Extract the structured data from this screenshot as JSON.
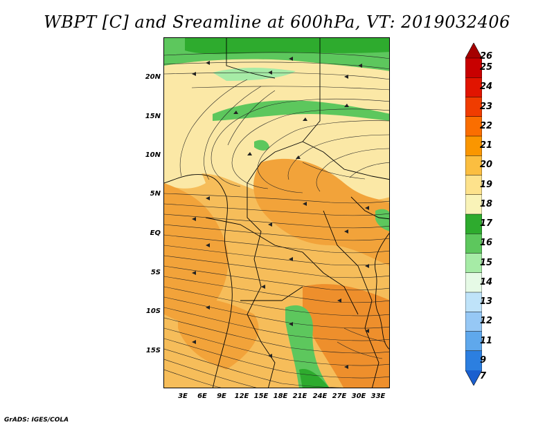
{
  "title": "WBPT [C] and Sreamline at 600hPa, VT: 2019032406",
  "credit": "GrADS: IGES/COLA",
  "lat_labels": [
    "20N",
    "15N",
    "10N",
    "5N",
    "EQ",
    "5S",
    "10S",
    "15S"
  ],
  "lon_labels": [
    "3E",
    "6E",
    "9E",
    "12E",
    "15E",
    "18E",
    "21E",
    "24E",
    "27E",
    "30E",
    "33E"
  ],
  "colorbar": {
    "levels": [
      "26",
      "25",
      "24",
      "23",
      "22",
      "21",
      "20",
      "19",
      "18",
      "17",
      "16",
      "15",
      "14",
      "13",
      "12",
      "11",
      "9",
      "7"
    ],
    "colors": [
      "#a50000",
      "#c80000",
      "#e11400",
      "#f03c00",
      "#fa6e00",
      "#fa9600",
      "#fbbe40",
      "#fde28c",
      "#f9f3b8",
      "#2eab2e",
      "#5dc75d",
      "#a6eba6",
      "#e6fae6",
      "#bfe3f9",
      "#96c8f5",
      "#5fa8ec",
      "#2c7fe0",
      "#1a5fcf"
    ]
  },
  "fill_colors": {
    "tan_light": "#fbe8a6",
    "orange_mid": "#f6bd5a",
    "orange_deep": "#f2a33a",
    "orange_dark": "#ee8f2c",
    "green_dark": "#2eab2e",
    "green_mid": "#5dc75d",
    "green_light": "#a6eba6"
  }
}
